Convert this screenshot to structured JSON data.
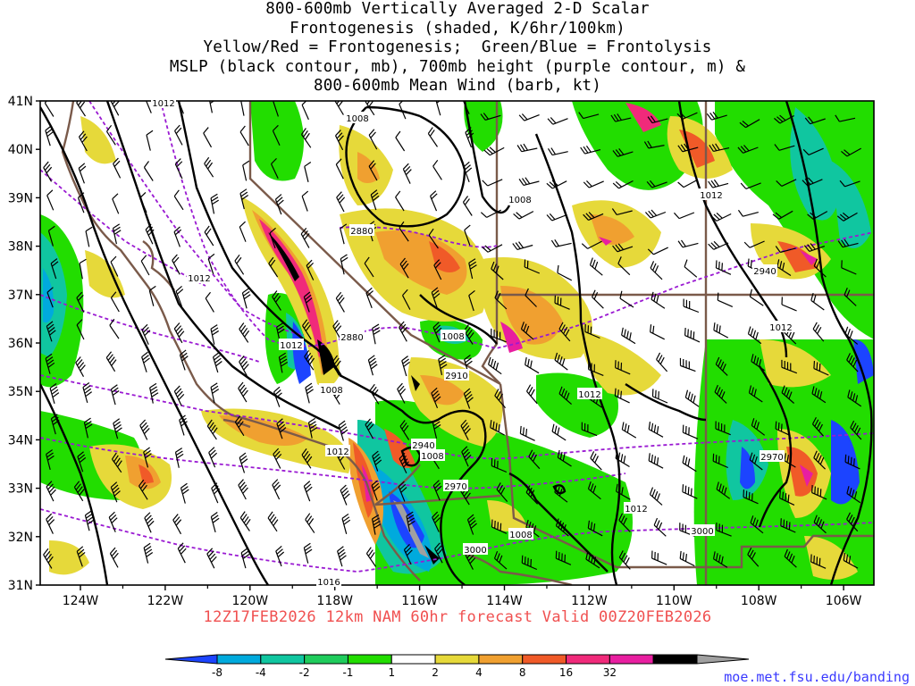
{
  "title_lines": [
    "800-600mb Vertically Averaged 2-D Scalar",
    "Frontogenesis (shaded, K/6hr/100km)",
    "Yellow/Red = Frontogenesis;  Green/Blue = Frontolysis",
    "MSLP (black contour, mb), 700mb height (purple contour, m) &",
    "800-600mb Mean Wind (barb, kt)"
  ],
  "axes": {
    "lat_labels": [
      "41N",
      "40N",
      "39N",
      "38N",
      "37N",
      "36N",
      "35N",
      "34N",
      "33N",
      "32N",
      "31N"
    ],
    "lon_labels": [
      "124W",
      "122W",
      "120W",
      "118W",
      "116W",
      "114W",
      "112W",
      "110W",
      "108W",
      "106W"
    ]
  },
  "valid_text": "12Z17FEB2026 12km NAM 60hr forecast Valid 00Z20FEB2026",
  "credit": "moe.met.fsu.edu/banding",
  "colorbar": {
    "labels": [
      "-8",
      "-4",
      "-2",
      "-1",
      "1",
      "2",
      "4",
      "8",
      "16",
      "32"
    ],
    "colors": [
      "#1c44ff",
      "#00aadd",
      "#10c6a0",
      "#1fcc5c",
      "#22dd00",
      "#ffffff",
      "#e6d93a",
      "#f0a030",
      "#f05a28",
      "#f02a7a",
      "#e81ea0",
      "#000000",
      "#a0a0a0"
    ]
  },
  "contour_labels": {
    "mslp": [
      "1012",
      "1008",
      "1008",
      "1012",
      "1012",
      "1012",
      "1008",
      "1008",
      "1012",
      "1008",
      "1012",
      "1012",
      "1012",
      "1008",
      "1016"
    ],
    "height": [
      "2880",
      "2880",
      "2910",
      "2940",
      "2970",
      "3000",
      "3000",
      "2940",
      "2970"
    ]
  }
}
